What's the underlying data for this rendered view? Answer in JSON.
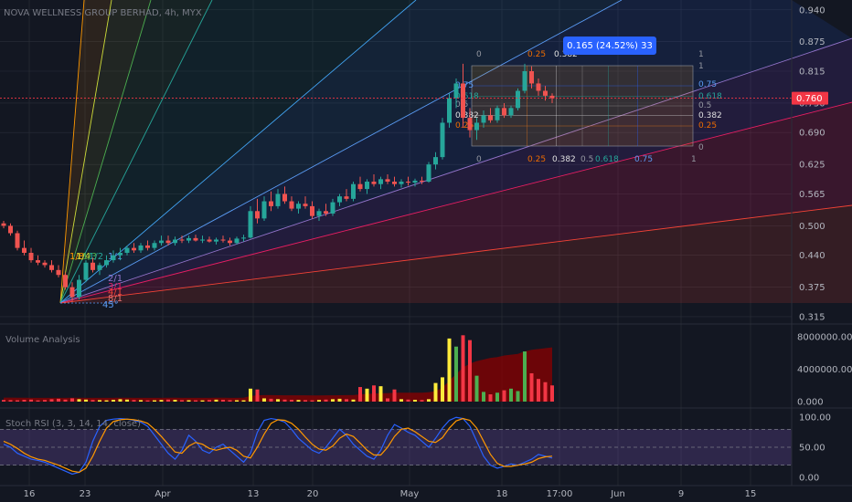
{
  "title": "NOVA WELLNESS GROUP BERHAD, 4h, MYX",
  "colors": {
    "bg": "#131722",
    "up": "#26a69a",
    "down": "#ef5350",
    "grid": "#2a2e39",
    "price_line": "#f23645",
    "stoch_k": "#2962ff",
    "stoch_d": "#ff9800",
    "vol_band": "#8b0000",
    "measure": "#2962ff"
  },
  "chart_data": [
    {
      "type": "candlestick",
      "title": "NOVA WELLNESS GROUP BERHAD, 4h, MYX",
      "x_tick_labels": [
        "16",
        "23",
        "Apr",
        "13",
        "20",
        "May",
        "18",
        "17:00",
        "Jun",
        "9",
        "15"
      ],
      "y_ticks": [
        0.315,
        0.375,
        0.44,
        0.5,
        0.565,
        0.625,
        0.69,
        0.75,
        0.815,
        0.875,
        0.94
      ],
      "ylim": [
        0.3,
        0.96
      ],
      "last_price": 0.76,
      "last_price_label": "0.760",
      "candles": [
        {
          "i": 0,
          "o": 0.505,
          "h": 0.51,
          "l": 0.495,
          "c": 0.5
        },
        {
          "i": 1,
          "o": 0.5,
          "h": 0.505,
          "l": 0.48,
          "c": 0.485
        },
        {
          "i": 2,
          "o": 0.485,
          "h": 0.49,
          "l": 0.45,
          "c": 0.455
        },
        {
          "i": 3,
          "o": 0.455,
          "h": 0.47,
          "l": 0.44,
          "c": 0.445
        },
        {
          "i": 4,
          "o": 0.445,
          "h": 0.455,
          "l": 0.425,
          "c": 0.43
        },
        {
          "i": 5,
          "o": 0.43,
          "h": 0.44,
          "l": 0.42,
          "c": 0.425
        },
        {
          "i": 6,
          "o": 0.425,
          "h": 0.43,
          "l": 0.415,
          "c": 0.42
        },
        {
          "i": 7,
          "o": 0.42,
          "h": 0.43,
          "l": 0.405,
          "c": 0.41
        },
        {
          "i": 8,
          "o": 0.41,
          "h": 0.42,
          "l": 0.395,
          "c": 0.4
        },
        {
          "i": 9,
          "o": 0.4,
          "h": 0.405,
          "l": 0.37,
          "c": 0.375
        },
        {
          "i": 10,
          "o": 0.375,
          "h": 0.385,
          "l": 0.345,
          "c": 0.355
        },
        {
          "i": 11,
          "o": 0.355,
          "h": 0.4,
          "l": 0.35,
          "c": 0.39
        },
        {
          "i": 12,
          "o": 0.39,
          "h": 0.43,
          "l": 0.385,
          "c": 0.425
        },
        {
          "i": 13,
          "o": 0.425,
          "h": 0.435,
          "l": 0.405,
          "c": 0.41
        },
        {
          "i": 14,
          "o": 0.41,
          "h": 0.425,
          "l": 0.4,
          "c": 0.42
        },
        {
          "i": 15,
          "o": 0.42,
          "h": 0.44,
          "l": 0.415,
          "c": 0.43
        },
        {
          "i": 16,
          "o": 0.43,
          "h": 0.45,
          "l": 0.425,
          "c": 0.44
        },
        {
          "i": 17,
          "o": 0.44,
          "h": 0.455,
          "l": 0.43,
          "c": 0.445
        },
        {
          "i": 18,
          "o": 0.445,
          "h": 0.46,
          "l": 0.44,
          "c": 0.455
        },
        {
          "i": 19,
          "o": 0.455,
          "h": 0.465,
          "l": 0.445,
          "c": 0.45
        },
        {
          "i": 20,
          "o": 0.45,
          "h": 0.465,
          "l": 0.445,
          "c": 0.46
        },
        {
          "i": 21,
          "o": 0.46,
          "h": 0.47,
          "l": 0.45,
          "c": 0.455
        },
        {
          "i": 22,
          "o": 0.455,
          "h": 0.47,
          "l": 0.45,
          "c": 0.465
        },
        {
          "i": 23,
          "o": 0.465,
          "h": 0.48,
          "l": 0.46,
          "c": 0.47
        },
        {
          "i": 24,
          "o": 0.47,
          "h": 0.48,
          "l": 0.46,
          "c": 0.465
        },
        {
          "i": 25,
          "o": 0.465,
          "h": 0.478,
          "l": 0.46,
          "c": 0.472
        },
        {
          "i": 26,
          "o": 0.472,
          "h": 0.48,
          "l": 0.465,
          "c": 0.47
        },
        {
          "i": 27,
          "o": 0.47,
          "h": 0.48,
          "l": 0.465,
          "c": 0.475
        },
        {
          "i": 28,
          "o": 0.475,
          "h": 0.482,
          "l": 0.468,
          "c": 0.47
        },
        {
          "i": 29,
          "o": 0.47,
          "h": 0.48,
          "l": 0.465,
          "c": 0.472
        },
        {
          "i": 30,
          "o": 0.472,
          "h": 0.478,
          "l": 0.466,
          "c": 0.468
        },
        {
          "i": 31,
          "o": 0.468,
          "h": 0.476,
          "l": 0.462,
          "c": 0.472
        },
        {
          "i": 32,
          "o": 0.472,
          "h": 0.48,
          "l": 0.466,
          "c": 0.47
        },
        {
          "i": 33,
          "o": 0.47,
          "h": 0.476,
          "l": 0.46,
          "c": 0.465
        },
        {
          "i": 34,
          "o": 0.465,
          "h": 0.478,
          "l": 0.462,
          "c": 0.474
        },
        {
          "i": 35,
          "o": 0.474,
          "h": 0.482,
          "l": 0.468,
          "c": 0.476
        },
        {
          "i": 36,
          "o": 0.476,
          "h": 0.54,
          "l": 0.474,
          "c": 0.53
        },
        {
          "i": 37,
          "o": 0.53,
          "h": 0.555,
          "l": 0.505,
          "c": 0.515
        },
        {
          "i": 38,
          "o": 0.515,
          "h": 0.56,
          "l": 0.51,
          "c": 0.55
        },
        {
          "i": 39,
          "o": 0.55,
          "h": 0.57,
          "l": 0.53,
          "c": 0.54
        },
        {
          "i": 40,
          "o": 0.54,
          "h": 0.575,
          "l": 0.535,
          "c": 0.565
        },
        {
          "i": 41,
          "o": 0.565,
          "h": 0.58,
          "l": 0.545,
          "c": 0.55
        },
        {
          "i": 42,
          "o": 0.55,
          "h": 0.56,
          "l": 0.53,
          "c": 0.535
        },
        {
          "i": 43,
          "o": 0.535,
          "h": 0.55,
          "l": 0.525,
          "c": 0.545
        },
        {
          "i": 44,
          "o": 0.545,
          "h": 0.56,
          "l": 0.535,
          "c": 0.54
        },
        {
          "i": 45,
          "o": 0.54,
          "h": 0.55,
          "l": 0.515,
          "c": 0.52
        },
        {
          "i": 46,
          "o": 0.52,
          "h": 0.535,
          "l": 0.51,
          "c": 0.53
        },
        {
          "i": 47,
          "o": 0.53,
          "h": 0.545,
          "l": 0.52,
          "c": 0.525
        },
        {
          "i": 48,
          "o": 0.525,
          "h": 0.555,
          "l": 0.52,
          "c": 0.548
        },
        {
          "i": 49,
          "o": 0.548,
          "h": 0.565,
          "l": 0.54,
          "c": 0.56
        },
        {
          "i": 50,
          "o": 0.56,
          "h": 0.575,
          "l": 0.55,
          "c": 0.555
        },
        {
          "i": 51,
          "o": 0.555,
          "h": 0.59,
          "l": 0.55,
          "c": 0.585
        },
        {
          "i": 52,
          "o": 0.585,
          "h": 0.6,
          "l": 0.57,
          "c": 0.575
        },
        {
          "i": 53,
          "o": 0.575,
          "h": 0.595,
          "l": 0.565,
          "c": 0.59
        },
        {
          "i": 54,
          "o": 0.59,
          "h": 0.605,
          "l": 0.58,
          "c": 0.585
        },
        {
          "i": 55,
          "o": 0.585,
          "h": 0.6,
          "l": 0.575,
          "c": 0.595
        },
        {
          "i": 56,
          "o": 0.595,
          "h": 0.605,
          "l": 0.585,
          "c": 0.59
        },
        {
          "i": 57,
          "o": 0.59,
          "h": 0.6,
          "l": 0.58,
          "c": 0.585
        },
        {
          "i": 58,
          "o": 0.585,
          "h": 0.595,
          "l": 0.578,
          "c": 0.59
        },
        {
          "i": 59,
          "o": 0.59,
          "h": 0.6,
          "l": 0.582,
          "c": 0.588
        },
        {
          "i": 60,
          "o": 0.588,
          "h": 0.596,
          "l": 0.58,
          "c": 0.592
        },
        {
          "i": 61,
          "o": 0.592,
          "h": 0.6,
          "l": 0.585,
          "c": 0.59
        },
        {
          "i": 62,
          "o": 0.59,
          "h": 0.63,
          "l": 0.588,
          "c": 0.625
        },
        {
          "i": 63,
          "o": 0.625,
          "h": 0.65,
          "l": 0.615,
          "c": 0.64
        },
        {
          "i": 64,
          "o": 0.64,
          "h": 0.72,
          "l": 0.635,
          "c": 0.71
        },
        {
          "i": 65,
          "o": 0.71,
          "h": 0.77,
          "l": 0.7,
          "c": 0.76
        },
        {
          "i": 66,
          "o": 0.76,
          "h": 0.8,
          "l": 0.74,
          "c": 0.79
        },
        {
          "i": 67,
          "o": 0.79,
          "h": 0.83,
          "l": 0.7,
          "c": 0.72
        },
        {
          "i": 68,
          "o": 0.72,
          "h": 0.74,
          "l": 0.68,
          "c": 0.695
        },
        {
          "i": 69,
          "o": 0.695,
          "h": 0.72,
          "l": 0.675,
          "c": 0.71
        },
        {
          "i": 70,
          "o": 0.71,
          "h": 0.735,
          "l": 0.7,
          "c": 0.725
        },
        {
          "i": 71,
          "o": 0.725,
          "h": 0.74,
          "l": 0.71,
          "c": 0.715
        },
        {
          "i": 72,
          "o": 0.715,
          "h": 0.745,
          "l": 0.71,
          "c": 0.74
        },
        {
          "i": 73,
          "o": 0.74,
          "h": 0.75,
          "l": 0.72,
          "c": 0.725
        },
        {
          "i": 74,
          "o": 0.725,
          "h": 0.745,
          "l": 0.72,
          "c": 0.74
        },
        {
          "i": 75,
          "o": 0.74,
          "h": 0.78,
          "l": 0.735,
          "c": 0.775
        },
        {
          "i": 76,
          "o": 0.775,
          "h": 0.83,
          "l": 0.77,
          "c": 0.815
        },
        {
          "i": 77,
          "o": 0.815,
          "h": 0.825,
          "l": 0.78,
          "c": 0.79
        },
        {
          "i": 78,
          "o": 0.79,
          "h": 0.8,
          "l": 0.765,
          "c": 0.775
        },
        {
          "i": 79,
          "o": 0.775,
          "h": 0.785,
          "l": 0.755,
          "c": 0.765
        },
        {
          "i": 80,
          "o": 0.765,
          "h": 0.77,
          "l": 0.75,
          "c": 0.76
        }
      ],
      "measure_label": "0.165 (24.52%) 33",
      "gann_fan_labels": [
        "1/8",
        "1/4",
        "1/3",
        "1/2",
        "1/1",
        "2/1",
        "3/1",
        "4/1",
        "8/1",
        "45°"
      ],
      "fib_box_top_labels": [
        "0",
        "0.25",
        "0.382",
        "1"
      ],
      "fib_box_bottom_labels": [
        "0",
        "0.25",
        "0.382",
        "0.5",
        "0.618",
        "0.75",
        "1"
      ],
      "fib_box_right_labels": [
        "1",
        "0.75",
        "0.618",
        "0.5",
        "0.382",
        "0.25",
        "0"
      ],
      "fib_box_left_labels": [
        "0.75",
        "0.618",
        "0.5",
        "0.382",
        "0.25"
      ]
    },
    {
      "type": "bar",
      "title": "Volume Analysis",
      "y_ticks": [
        "8000000.000",
        "4000000.000",
        "0.000"
      ],
      "ylim": [
        0,
        8800000
      ],
      "values": [
        200000,
        180000,
        160000,
        220000,
        250000,
        150000,
        200000,
        300000,
        350000,
        250000,
        400000,
        300000,
        250000,
        200000,
        180000,
        160000,
        220000,
        300000,
        250000,
        200000,
        180000,
        150000,
        160000,
        200000,
        250000,
        220000,
        180000,
        170000,
        160000,
        150000,
        200000,
        240000,
        220000,
        180000,
        170000,
        160000,
        1600000,
        1500000,
        400000,
        350000,
        300000,
        250000,
        220000,
        200000,
        180000,
        160000,
        200000,
        250000,
        300000,
        350000,
        300000,
        250000,
        1800000,
        1600000,
        2000000,
        1900000,
        400000,
        1500000,
        300000,
        250000,
        220000,
        200000,
        300000,
        2300000,
        3000000,
        7800000,
        6800000,
        8200000,
        7600000,
        3200000,
        1200000,
        900000,
        1100000,
        1400000,
        1600000,
        1300000,
        6200000,
        3500000,
        2800000,
        2400000,
        2000000
      ],
      "band_upper": [
        500000,
        500000,
        480000,
        480000,
        470000,
        470000,
        460000,
        460000,
        460000,
        470000,
        480000,
        480000,
        470000,
        470000,
        460000,
        460000,
        470000,
        480000,
        480000,
        470000,
        470000,
        460000,
        460000,
        470000,
        480000,
        480000,
        470000,
        470000,
        460000,
        460000,
        470000,
        480000,
        480000,
        470000,
        470000,
        480000,
        700000,
        780000,
        800000,
        800000,
        790000,
        780000,
        780000,
        770000,
        770000,
        760000,
        760000,
        770000,
        780000,
        790000,
        800000,
        800000,
        900000,
        950000,
        1000000,
        1050000,
        1050000,
        1100000,
        1100000,
        1100000,
        1100000,
        1100000,
        1150000,
        1300000,
        1700000,
        2600000,
        3400000,
        4200000,
        4700000,
        5000000,
        5200000,
        5400000,
        5500000,
        5700000,
        5800000,
        5900000,
        6200000,
        6400000,
        6500000,
        6600000,
        6700000
      ]
    },
    {
      "type": "line",
      "title": "Stoch RSI (3, 3, 14, 14, close)",
      "y_ticks": [
        "100.00",
        "50.00",
        "0.00"
      ],
      "ylim": [
        -8,
        108
      ],
      "upper_band": 80,
      "lower_band": 20,
      "series": [
        {
          "name": "K",
          "values": [
            55,
            50,
            40,
            35,
            30,
            28,
            25,
            20,
            15,
            10,
            5,
            8,
            25,
            60,
            85,
            95,
            97,
            98,
            97,
            95,
            92,
            85,
            70,
            55,
            40,
            30,
            45,
            70,
            60,
            45,
            40,
            50,
            55,
            45,
            35,
            25,
            40,
            75,
            95,
            98,
            96,
            92,
            80,
            65,
            55,
            45,
            40,
            50,
            65,
            80,
            70,
            55,
            45,
            35,
            30,
            45,
            70,
            88,
            82,
            75,
            70,
            60,
            50,
            65,
            82,
            95,
            100,
            98,
            85,
            60,
            35,
            20,
            15,
            18,
            22,
            20,
            25,
            30,
            38,
            35,
            32
          ]
        },
        {
          "name": "D",
          "values": [
            60,
            55,
            48,
            40,
            34,
            30,
            28,
            24,
            20,
            15,
            10,
            8,
            15,
            35,
            60,
            82,
            93,
            96,
            97,
            96,
            94,
            90,
            80,
            68,
            55,
            42,
            40,
            52,
            58,
            55,
            48,
            45,
            48,
            50,
            45,
            35,
            32,
            50,
            72,
            90,
            96,
            95,
            90,
            80,
            67,
            55,
            47,
            45,
            52,
            65,
            72,
            68,
            57,
            45,
            37,
            37,
            50,
            68,
            80,
            82,
            76,
            68,
            60,
            58,
            66,
            82,
            94,
            98,
            95,
            82,
            60,
            38,
            23,
            18,
            18,
            20,
            22,
            25,
            31,
            34,
            35
          ]
        }
      ]
    }
  ]
}
